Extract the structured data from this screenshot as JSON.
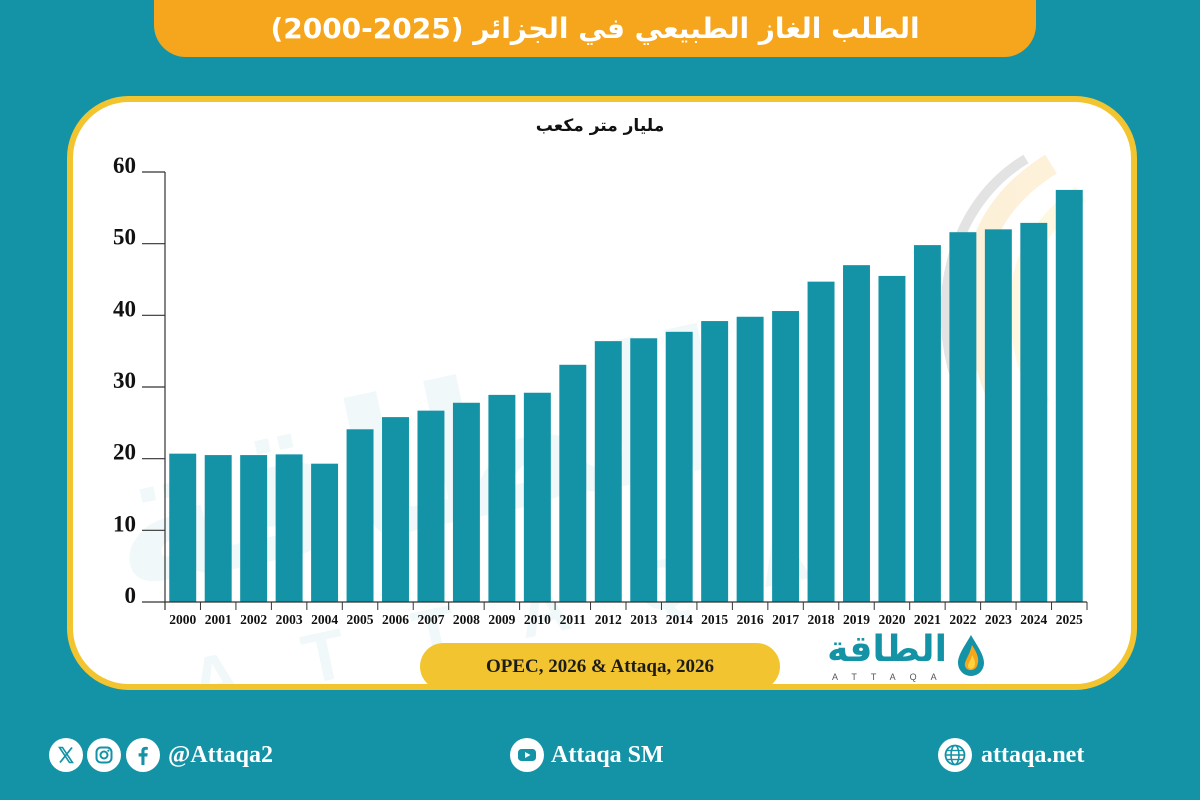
{
  "colors": {
    "background": "#1493a7",
    "banner": "#f6a61c",
    "card_border": "#f2c530",
    "bar": "#1493a7",
    "text_dark": "#111111"
  },
  "chart_data": {
    "type": "bar",
    "title": "الطلب الغاز الطبيعي في الجزائر (2025-2000)",
    "ylabel": "مليار متر مكعب",
    "categories": [
      "2000",
      "2001",
      "2002",
      "2003",
      "2004",
      "2005",
      "2006",
      "2007",
      "2008",
      "2009",
      "2010",
      "2011",
      "2012",
      "2013",
      "2014",
      "2015",
      "2016",
      "2017",
      "2018",
      "2019",
      "2020",
      "2021",
      "2022",
      "2023",
      "2024",
      "2025"
    ],
    "values": [
      20.7,
      20.5,
      20.5,
      20.6,
      19.3,
      24.1,
      25.8,
      26.7,
      27.8,
      28.9,
      29.2,
      33.1,
      36.4,
      36.8,
      37.7,
      39.2,
      39.8,
      40.6,
      44.7,
      47.0,
      45.5,
      49.8,
      51.6,
      52.0,
      52.9,
      57.5
    ],
    "ylim": [
      0,
      60
    ],
    "yticks": [
      0,
      10,
      20,
      30,
      40,
      50,
      60
    ],
    "grid": false,
    "legend": "none"
  },
  "source": "OPEC, 2026 & Attaqa, 2026",
  "logo": {
    "arabic": "الطاقة",
    "latin": "ATTAQA",
    "icon": "flame-drop-icon"
  },
  "watermark": {
    "arabic": "الطاقة",
    "latin": "ATTAQA"
  },
  "footer": {
    "social": {
      "icons": [
        "x-icon",
        "instagram-icon",
        "facebook-icon"
      ],
      "handle": "@Attaqa2"
    },
    "youtube": {
      "icon": "youtube-icon",
      "label": "Attaqa SM"
    },
    "website": {
      "icon": "globe-icon",
      "label": "attaqa.net"
    }
  }
}
